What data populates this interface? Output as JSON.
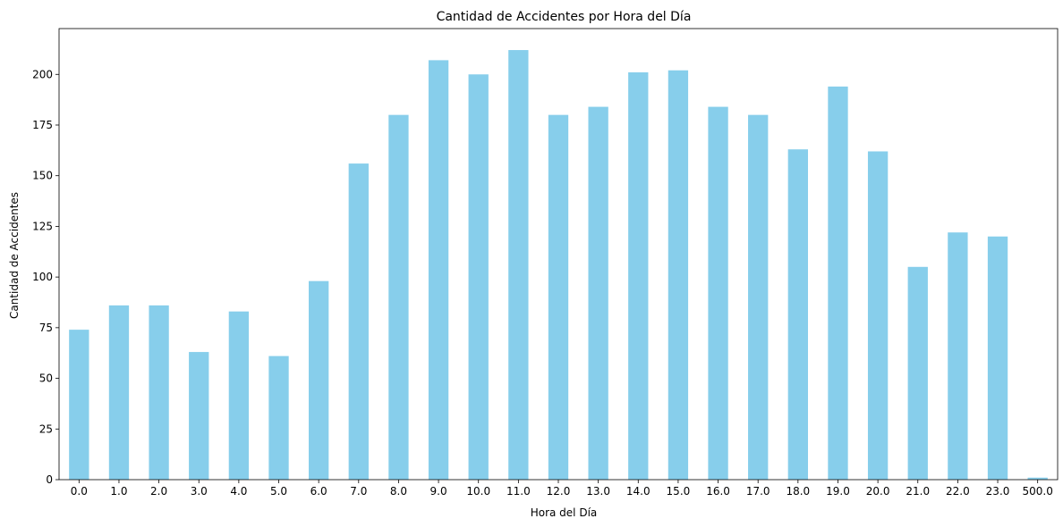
{
  "chart_data": {
    "type": "bar",
    "title": "Cantidad de Accidentes por Hora del Día",
    "xlabel": "Hora del Día",
    "ylabel": "Cantidad de Accidentes",
    "categories": [
      "0.0",
      "1.0",
      "2.0",
      "3.0",
      "4.0",
      "5.0",
      "6.0",
      "7.0",
      "8.0",
      "9.0",
      "10.0",
      "11.0",
      "12.0",
      "13.0",
      "14.0",
      "15.0",
      "16.0",
      "17.0",
      "18.0",
      "19.0",
      "20.0",
      "21.0",
      "22.0",
      "23.0",
      "500.0"
    ],
    "values": [
      74,
      86,
      86,
      63,
      83,
      61,
      98,
      156,
      180,
      207,
      200,
      212,
      180,
      184,
      201,
      202,
      184,
      180,
      163,
      194,
      162,
      105,
      122,
      120,
      1
    ],
    "ylim": [
      0,
      222.6
    ],
    "yticks": [
      0,
      25,
      50,
      75,
      100,
      125,
      150,
      175,
      200
    ],
    "bar_color": "#87ceeb",
    "grid": false,
    "legend": "none"
  }
}
